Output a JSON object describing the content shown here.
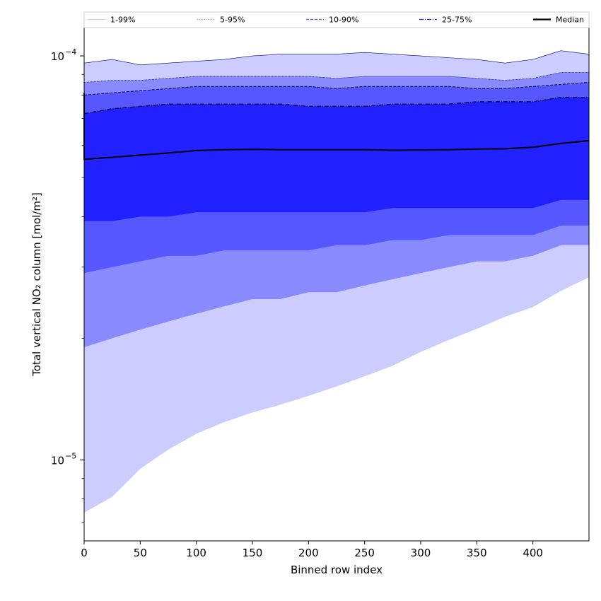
{
  "chart_data": {
    "type": "area",
    "xlabel": "Binned row index",
    "ylabel": "Total vertical NO₂ column [mol/m²]",
    "y_scale": "log",
    "xlim": [
      0,
      450
    ],
    "ylim": [
      6.3e-06,
      0.000118
    ],
    "x_ticks": [
      0,
      50,
      100,
      150,
      200,
      250,
      300,
      350,
      400
    ],
    "y_ticks": [
      {
        "value": 0.0001,
        "base": "10",
        "exp": "−4"
      },
      {
        "value": 1e-05,
        "base": "10",
        "exp": "−5"
      }
    ],
    "grid": false,
    "legend_position": "top",
    "legend": [
      {
        "label": "1-99%",
        "color": "#ccccff",
        "style": "solid"
      },
      {
        "label": "5-95%",
        "color": "#8a8aff",
        "style": "dotted"
      },
      {
        "label": "10-90%",
        "color": "#5757ff",
        "style": "dashed"
      },
      {
        "label": "25-75%",
        "color": "#2121ff",
        "style": "dashdot"
      },
      {
        "label": "Median",
        "color": "#000000",
        "style": "solid"
      }
    ],
    "x": [
      0,
      25,
      50,
      75,
      100,
      125,
      150,
      175,
      200,
      225,
      250,
      275,
      300,
      325,
      350,
      375,
      400,
      425,
      450
    ],
    "series": [
      {
        "name": "1-99%",
        "color": "#ccccff",
        "lower": [
          7.4e-06,
          8.1e-06,
          9.5e-06,
          1.06e-05,
          1.16e-05,
          1.24e-05,
          1.31e-05,
          1.37e-05,
          1.44e-05,
          1.52e-05,
          1.61e-05,
          1.71e-05,
          1.85e-05,
          1.98e-05,
          2.11e-05,
          2.26e-05,
          2.39e-05,
          2.62e-05,
          2.83e-05
        ],
        "upper": [
          9.6e-05,
          9.8e-05,
          9.5e-05,
          9.6e-05,
          9.7e-05,
          9.8e-05,
          0.0001,
          0.000101,
          0.000101,
          0.000101,
          0.000102,
          0.000101,
          0.0001,
          9.9e-05,
          9.8e-05,
          9.6e-05,
          9.8e-05,
          0.000103,
          0.000101
        ]
      },
      {
        "name": "5-95%",
        "color": "#8a8aff",
        "lower": [
          1.9e-05,
          2e-05,
          2.1e-05,
          2.2e-05,
          2.3e-05,
          2.4e-05,
          2.5e-05,
          2.5e-05,
          2.6e-05,
          2.6e-05,
          2.7e-05,
          2.8e-05,
          2.9e-05,
          3e-05,
          3.1e-05,
          3.1e-05,
          3.2e-05,
          3.4e-05,
          3.4e-05
        ],
        "upper": [
          8.6e-05,
          8.7e-05,
          8.7e-05,
          8.8e-05,
          8.9e-05,
          8.9e-05,
          8.9e-05,
          8.9e-05,
          8.9e-05,
          8.8e-05,
          8.9e-05,
          8.9e-05,
          8.9e-05,
          8.9e-05,
          8.8e-05,
          8.7e-05,
          8.8e-05,
          9.1e-05,
          9.1e-05
        ]
      },
      {
        "name": "10-90%",
        "color": "#5757ff",
        "lower": [
          2.9e-05,
          3e-05,
          3.1e-05,
          3.2e-05,
          3.2e-05,
          3.3e-05,
          3.3e-05,
          3.3e-05,
          3.3e-05,
          3.4e-05,
          3.4e-05,
          3.5e-05,
          3.5e-05,
          3.6e-05,
          3.6e-05,
          3.6e-05,
          3.6e-05,
          3.8e-05,
          3.8e-05
        ],
        "upper": [
          8e-05,
          8.1e-05,
          8.2e-05,
          8.3e-05,
          8.4e-05,
          8.4e-05,
          8.4e-05,
          8.4e-05,
          8.4e-05,
          8.3e-05,
          8.4e-05,
          8.4e-05,
          8.4e-05,
          8.4e-05,
          8.3e-05,
          8.3e-05,
          8.4e-05,
          8.5e-05,
          8.6e-05
        ]
      },
      {
        "name": "25-75%",
        "color": "#2121ff",
        "lower": [
          3.9e-05,
          3.9e-05,
          4e-05,
          4e-05,
          4.1e-05,
          4.1e-05,
          4.1e-05,
          4.1e-05,
          4.1e-05,
          4.1e-05,
          4.1e-05,
          4.2e-05,
          4.2e-05,
          4.2e-05,
          4.2e-05,
          4.2e-05,
          4.2e-05,
          4.4e-05,
          4.4e-05
        ]
      },
      {
        "name": "Median",
        "color": "#000000",
        "values": [
          5.55e-05,
          5.61e-05,
          5.68e-05,
          5.75e-05,
          5.83e-05,
          5.86e-05,
          5.87e-05,
          5.86e-05,
          5.86e-05,
          5.86e-05,
          5.86e-05,
          5.84e-05,
          5.85e-05,
          5.86e-05,
          5.88e-05,
          5.89e-05,
          5.94e-05,
          6.07e-05,
          6.17e-05
        ]
      }
    ],
    "band_25_75_upper": [
      7.2e-05,
      7.4e-05,
      7.5e-05,
      7.6e-05,
      7.6e-05,
      7.6e-05,
      7.6e-05,
      7.6e-05,
      7.5e-05,
      7.5e-05,
      7.5e-05,
      7.6e-05,
      7.6e-05,
      7.6e-05,
      7.7e-05,
      7.7e-05,
      7.7e-05,
      7.9e-05,
      7.9e-05
    ]
  }
}
